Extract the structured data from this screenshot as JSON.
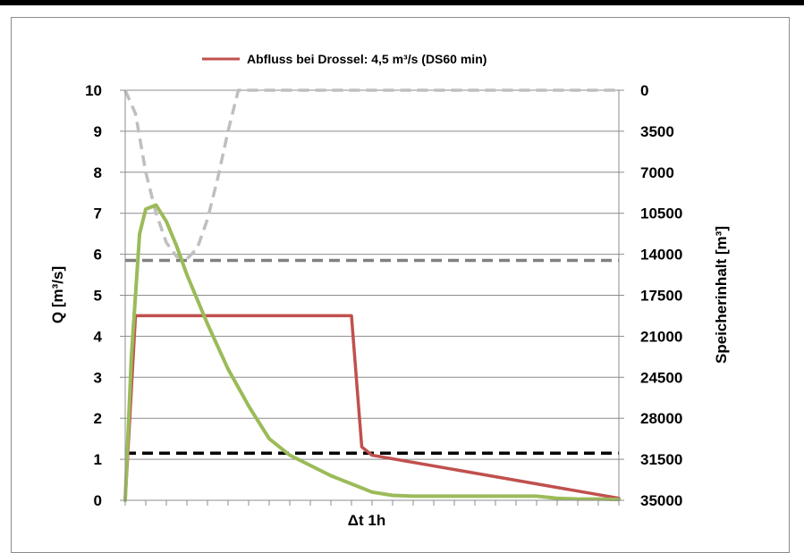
{
  "chart_data": {
    "type": "line",
    "legend": {
      "label": "Abfluss bei Drossel: 4,5 m³/s (DS60 min)",
      "position": "top"
    },
    "xlabel": "Δt 1h",
    "ylabel": "Q [m³/s]",
    "y2label": "Speicherinhalt [m³]",
    "ylim": [
      0,
      10
    ],
    "y2lim": [
      35000,
      0
    ],
    "yticks": [
      "0",
      "1",
      "2",
      "3",
      "4",
      "5",
      "6",
      "7",
      "8",
      "9",
      "10"
    ],
    "y2ticks": [
      "35000",
      "31500",
      "28000",
      "24500",
      "21000",
      "17500",
      "14000",
      "10500",
      "7000",
      "3500",
      "0"
    ],
    "grid": true,
    "series": [
      {
        "name": "Abfluss bei Drossel: 4,5 m³/s (DS60 min)",
        "color": "#c0504d",
        "axis": "left",
        "x": [
          0,
          0.5,
          1.5,
          2,
          11,
          11.5,
          12,
          24
        ],
        "y": [
          0,
          4.5,
          4.5,
          4.5,
          4.5,
          1.3,
          1.1,
          0.05
        ]
      },
      {
        "color": "#9bbb59",
        "axis": "left",
        "x": [
          0,
          0.3,
          0.7,
          1,
          1.5,
          2,
          2.5,
          3,
          4,
          5,
          6,
          7,
          8,
          9,
          10,
          11,
          12,
          13,
          14,
          15,
          16,
          17,
          18,
          19,
          20,
          21,
          22,
          23,
          24
        ],
        "y": [
          0,
          3.5,
          6.5,
          7.1,
          7.2,
          6.8,
          6.2,
          5.5,
          4.3,
          3.2,
          2.3,
          1.5,
          1.1,
          0.85,
          0.6,
          0.4,
          0.2,
          0.12,
          0.1,
          0.1,
          0.1,
          0.1,
          0.1,
          0.1,
          0.1,
          0.05,
          0.03,
          0.03,
          0.02
        ]
      },
      {
        "color": "#bfbfbf",
        "axis": "right",
        "dashed": true,
        "x": [
          0,
          0.5,
          1,
          1.5,
          2,
          2.5,
          3,
          3.5,
          4,
          4.5,
          5,
          5.5,
          24
        ],
        "y": [
          0,
          2000,
          7000,
          10500,
          13000,
          14200,
          14400,
          13500,
          11000,
          7500,
          3500,
          0,
          0
        ]
      },
      {
        "color": "#808080",
        "axis": "left",
        "dashed": true,
        "x": [
          0,
          24
        ],
        "y": [
          5.85,
          5.85
        ]
      },
      {
        "color": "#000000",
        "axis": "left",
        "dashed": true,
        "x": [
          0,
          24
        ],
        "y": [
          1.15,
          1.15
        ]
      }
    ]
  }
}
